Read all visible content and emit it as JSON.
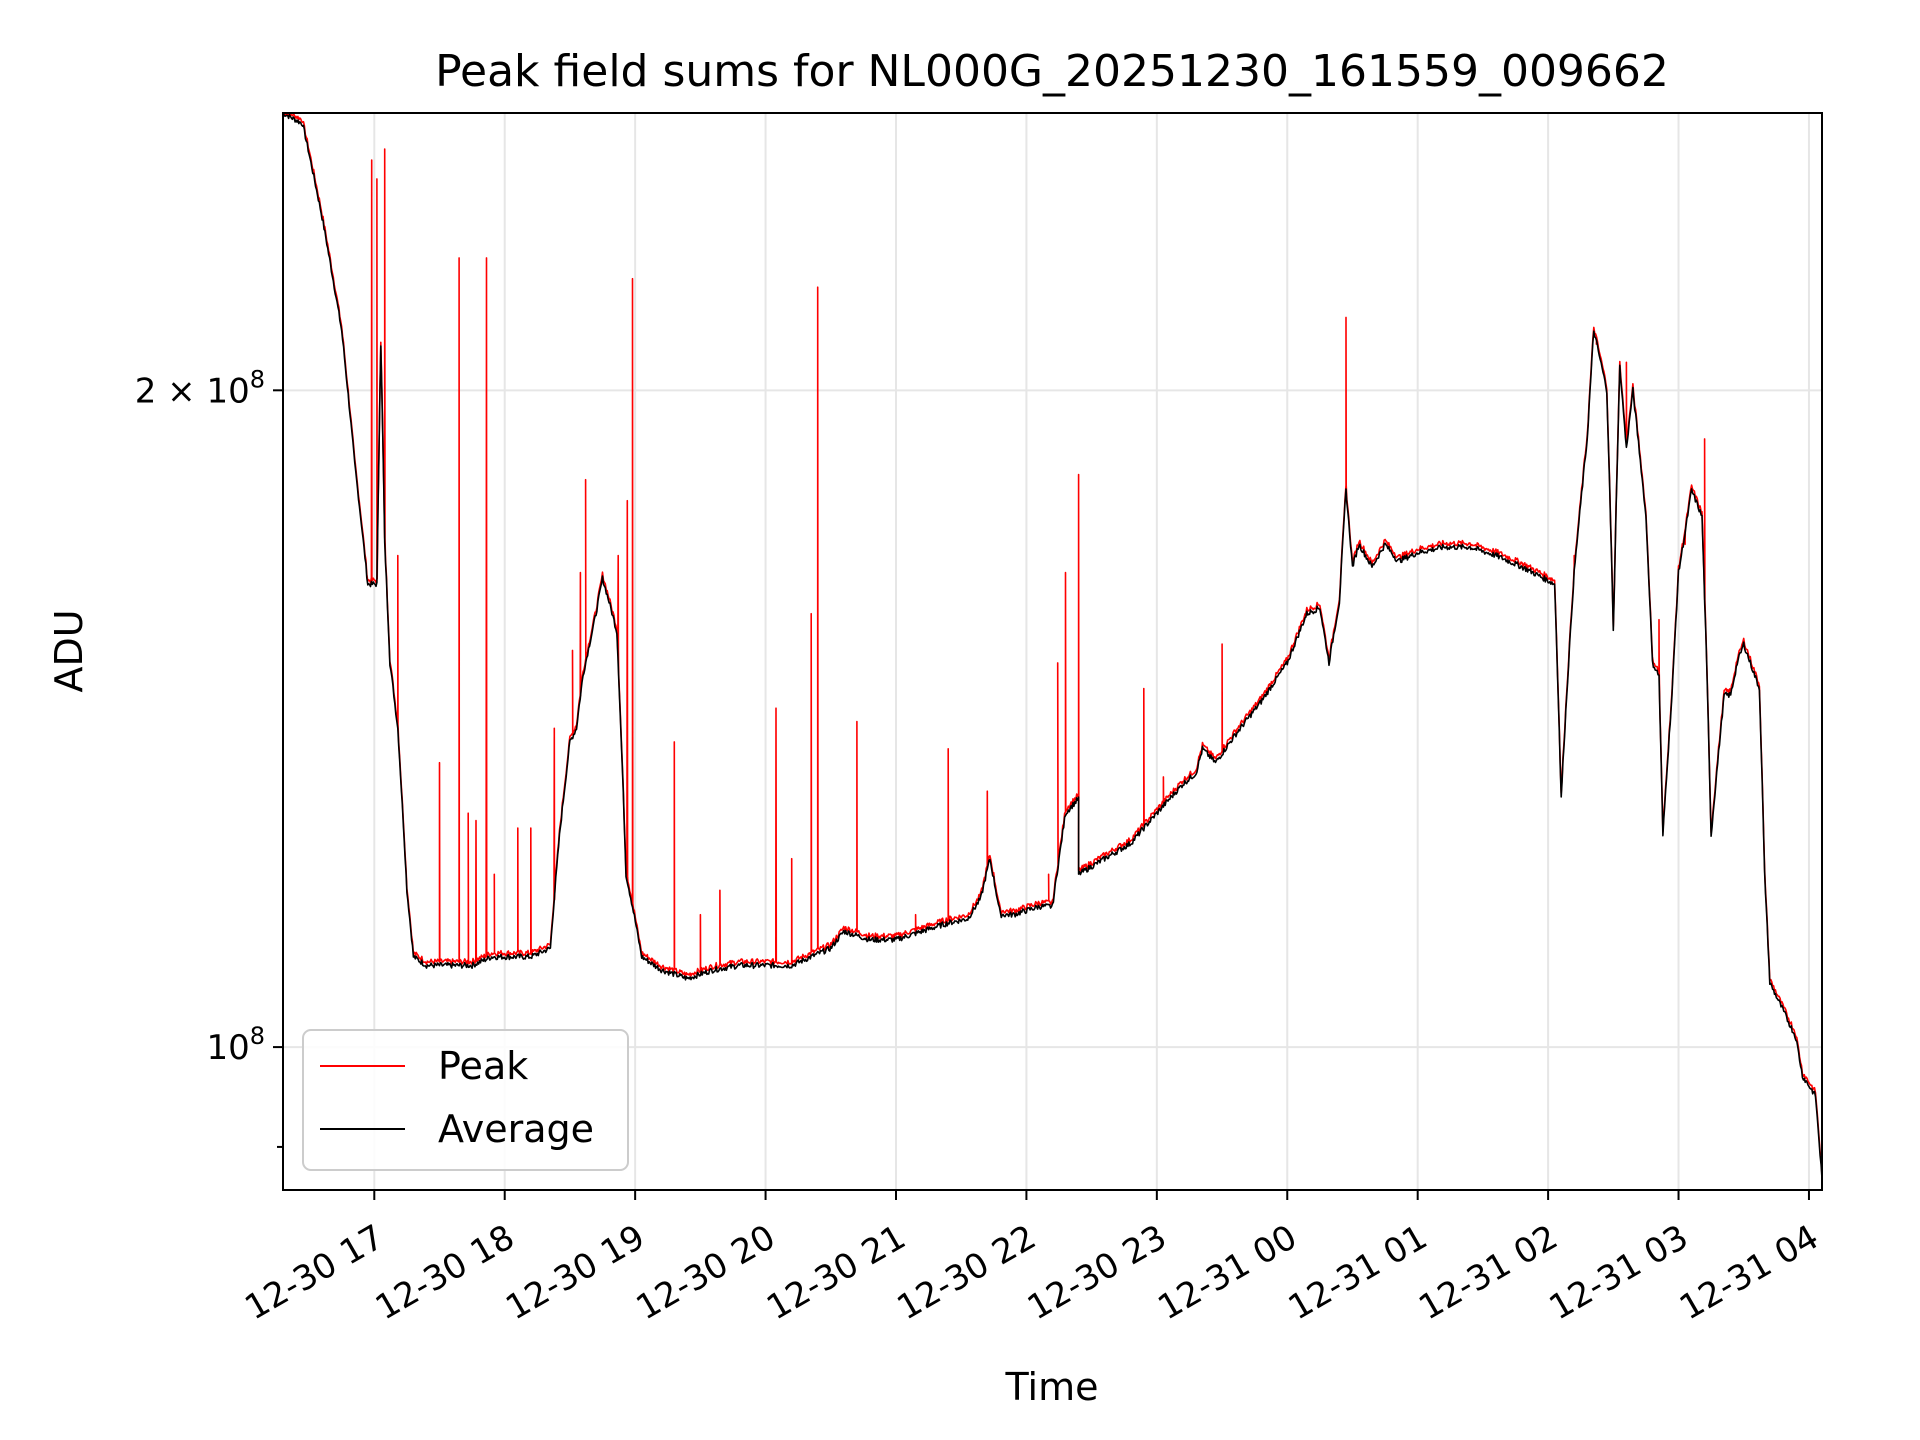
{
  "chart_data": {
    "type": "line",
    "title": "Peak field sums for NL000G_20251230_161559_009662",
    "xlabel": "Time",
    "ylabel": "ADU",
    "y_scale": "log",
    "grid": true,
    "legend": "lower-left",
    "xlim_hours": [
      16.3,
      28.1
    ],
    "ylim": [
      86000000,
      268000000
    ],
    "x_ticks": [
      {
        "hour": 17,
        "label": "12-30 17"
      },
      {
        "hour": 18,
        "label": "12-30 18"
      },
      {
        "hour": 19,
        "label": "12-30 19"
      },
      {
        "hour": 20,
        "label": "12-30 20"
      },
      {
        "hour": 21,
        "label": "12-30 21"
      },
      {
        "hour": 22,
        "label": "12-30 22"
      },
      {
        "hour": 23,
        "label": "12-30 23"
      },
      {
        "hour": 24,
        "label": "12-31 00"
      },
      {
        "hour": 25,
        "label": "12-31 01"
      },
      {
        "hour": 26,
        "label": "12-31 02"
      },
      {
        "hour": 27,
        "label": "12-31 03"
      },
      {
        "hour": 28,
        "label": "12-31 04"
      }
    ],
    "y_ticks": [
      {
        "value": 100000000,
        "base": "10",
        "exp": "8",
        "coef": ""
      },
      {
        "value": 200000000,
        "base": "10",
        "exp": "8",
        "coef": "2 × "
      }
    ],
    "y_minor_ticks": [
      90000000
    ],
    "series": [
      {
        "name": "Average",
        "color": "#000000",
        "points": [
          [
            16.3,
            268
          ],
          [
            16.45,
            265
          ],
          [
            16.6,
            240
          ],
          [
            16.75,
            213
          ],
          [
            16.85,
            185
          ],
          [
            16.95,
            163
          ],
          [
            17.02,
            163
          ],
          [
            17.05,
            210
          ],
          [
            17.08,
            170
          ],
          [
            17.12,
            150
          ],
          [
            17.18,
            140
          ],
          [
            17.25,
            118
          ],
          [
            17.3,
            110
          ],
          [
            17.4,
            109
          ],
          [
            17.6,
            109
          ],
          [
            17.75,
            109
          ],
          [
            17.9,
            110
          ],
          [
            18.05,
            110
          ],
          [
            18.2,
            110
          ],
          [
            18.35,
            111
          ],
          [
            18.42,
            125
          ],
          [
            18.5,
            138
          ],
          [
            18.55,
            140
          ],
          [
            18.6,
            148
          ],
          [
            18.7,
            158
          ],
          [
            18.75,
            164
          ],
          [
            18.8,
            160
          ],
          [
            18.86,
            155
          ],
          [
            18.93,
            120
          ],
          [
            18.98,
            116
          ],
          [
            19.05,
            110
          ],
          [
            19.2,
            108.5
          ],
          [
            19.4,
            107.5
          ],
          [
            19.6,
            108.5
          ],
          [
            19.8,
            109
          ],
          [
            20.0,
            109
          ],
          [
            20.2,
            109
          ],
          [
            20.35,
            110
          ],
          [
            20.5,
            111
          ],
          [
            20.6,
            113
          ],
          [
            20.8,
            112
          ],
          [
            21.0,
            112
          ],
          [
            21.2,
            113
          ],
          [
            21.4,
            114
          ],
          [
            21.55,
            114.5
          ],
          [
            21.65,
            117
          ],
          [
            21.72,
            122
          ],
          [
            21.8,
            115
          ],
          [
            21.9,
            115
          ],
          [
            22.0,
            115.5
          ],
          [
            22.1,
            116
          ],
          [
            22.2,
            116
          ],
          [
            22.3,
            128
          ],
          [
            22.4,
            130
          ],
          [
            22.4,
            120
          ],
          [
            22.6,
            122
          ],
          [
            22.8,
            124
          ],
          [
            23.0,
            128
          ],
          [
            23.2,
            132
          ],
          [
            23.3,
            133.5
          ],
          [
            23.35,
            137
          ],
          [
            23.45,
            135
          ],
          [
            23.6,
            139
          ],
          [
            23.8,
            144
          ],
          [
            24.0,
            150
          ],
          [
            24.15,
            158
          ],
          [
            24.25,
            159
          ],
          [
            24.32,
            150
          ],
          [
            24.4,
            160
          ],
          [
            24.45,
            180
          ],
          [
            24.5,
            166
          ],
          [
            24.55,
            170
          ],
          [
            24.65,
            166
          ],
          [
            24.75,
            170
          ],
          [
            24.85,
            167
          ],
          [
            25.0,
            168.5
          ],
          [
            25.2,
            169.5
          ],
          [
            25.4,
            169.5
          ],
          [
            25.6,
            168
          ],
          [
            25.8,
            166
          ],
          [
            26.05,
            163
          ],
          [
            26.1,
            130
          ],
          [
            26.2,
            165
          ],
          [
            26.3,
            190
          ],
          [
            26.35,
            213
          ],
          [
            26.45,
            200
          ],
          [
            26.5,
            155
          ],
          [
            26.55,
            205
          ],
          [
            26.6,
            188
          ],
          [
            26.65,
            200
          ],
          [
            26.75,
            175
          ],
          [
            26.8,
            150
          ],
          [
            26.85,
            148
          ],
          [
            26.88,
            125
          ],
          [
            26.95,
            145
          ],
          [
            27.0,
            165
          ],
          [
            27.05,
            172
          ],
          [
            27.1,
            180
          ],
          [
            27.18,
            175
          ],
          [
            27.25,
            125
          ],
          [
            27.3,
            135
          ],
          [
            27.35,
            145
          ],
          [
            27.4,
            145
          ],
          [
            27.45,
            150
          ],
          [
            27.5,
            153
          ],
          [
            27.55,
            150
          ],
          [
            27.62,
            146
          ],
          [
            27.66,
            120
          ],
          [
            27.7,
            107
          ],
          [
            27.8,
            104
          ],
          [
            27.9,
            101
          ],
          [
            27.95,
            97
          ],
          [
            28.05,
            95
          ],
          [
            28.1,
            87
          ]
        ]
      },
      {
        "name": "Peak",
        "color": "#ff0000",
        "spikes": [
          [
            16.98,
            255
          ],
          [
            17.02,
            250
          ],
          [
            17.08,
            258
          ],
          [
            17.18,
            168
          ],
          [
            17.5,
            135
          ],
          [
            17.65,
            230
          ],
          [
            17.72,
            128
          ],
          [
            17.78,
            127
          ],
          [
            17.86,
            230
          ],
          [
            17.92,
            120
          ],
          [
            18.1,
            126
          ],
          [
            18.2,
            126
          ],
          [
            18.38,
            140
          ],
          [
            18.52,
            152
          ],
          [
            18.58,
            165
          ],
          [
            18.62,
            182
          ],
          [
            18.87,
            168
          ],
          [
            18.94,
            178
          ],
          [
            18.98,
            225
          ],
          [
            19.3,
            138
          ],
          [
            19.5,
            115
          ],
          [
            19.65,
            118
          ],
          [
            20.08,
            143
          ],
          [
            20.2,
            122
          ],
          [
            20.35,
            158
          ],
          [
            20.4,
            223
          ],
          [
            20.7,
            141
          ],
          [
            21.15,
            115
          ],
          [
            21.4,
            137
          ],
          [
            21.7,
            131
          ],
          [
            22.17,
            120
          ],
          [
            22.24,
            150
          ],
          [
            22.3,
            165
          ],
          [
            22.4,
            183
          ],
          [
            22.9,
            146
          ],
          [
            23.05,
            133
          ],
          [
            23.5,
            153
          ],
          [
            24.45,
            216
          ],
          [
            26.2,
            168
          ],
          [
            26.37,
            210
          ],
          [
            26.6,
            206
          ],
          [
            26.85,
            157
          ],
          [
            27.05,
            170
          ],
          [
            27.2,
            190
          ]
        ]
      }
    ]
  }
}
